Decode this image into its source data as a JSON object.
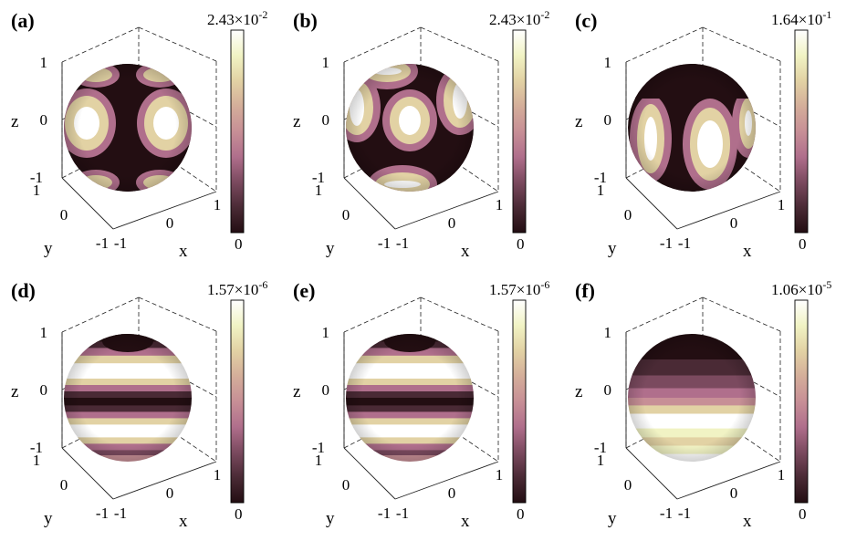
{
  "colormap": [
    "#230e12",
    "#4a2a35",
    "#7b4a5f",
    "#b06f8c",
    "#c78f96",
    "#d4ae9a",
    "#e2d2a4",
    "#f1f3c4",
    "#ffffff"
  ],
  "panels": [
    {
      "label": "(a)",
      "pattern": "a",
      "cbar": {
        "mantissa": "2.43×10",
        "exponent": "-2",
        "min": "0"
      },
      "ticks": {
        "z": [
          "1",
          "0",
          "-1"
        ],
        "y": [
          "1",
          "0",
          "-1"
        ],
        "x": [
          "-1",
          "0",
          "1"
        ]
      },
      "axes": {
        "x": "x",
        "y": "y",
        "z": "z"
      }
    },
    {
      "label": "(b)",
      "pattern": "b",
      "cbar": {
        "mantissa": "2.43×10",
        "exponent": "-2",
        "min": "0"
      },
      "ticks": {
        "z": [
          "1",
          "0",
          "-1"
        ],
        "y": [
          "1",
          "0",
          "-1"
        ],
        "x": [
          "-1",
          "0",
          "1"
        ]
      },
      "axes": {
        "x": "x",
        "y": "y",
        "z": "z"
      }
    },
    {
      "label": "(c)",
      "pattern": "c",
      "cbar": {
        "mantissa": "1.64×10",
        "exponent": "-1",
        "min": "0"
      },
      "ticks": {
        "z": [
          "1",
          "0",
          "-1"
        ],
        "y": [
          "1",
          "0",
          "-1"
        ],
        "x": [
          "-1",
          "0",
          "1"
        ]
      },
      "axes": {
        "x": "x",
        "y": "y",
        "z": "z"
      }
    },
    {
      "label": "(d)",
      "pattern": "d",
      "cbar": {
        "mantissa": "1.57×10",
        "exponent": "-6",
        "min": "0"
      },
      "ticks": {
        "z": [
          "1",
          "0",
          "-1"
        ],
        "y": [
          "1",
          "0",
          "-1"
        ],
        "x": [
          "-1",
          "0",
          "1"
        ]
      },
      "axes": {
        "x": "x",
        "y": "y",
        "z": "z"
      }
    },
    {
      "label": "(e)",
      "pattern": "d",
      "cbar": {
        "mantissa": "1.57×10",
        "exponent": "-6",
        "min": "0"
      },
      "ticks": {
        "z": [
          "1",
          "0",
          "-1"
        ],
        "y": [
          "1",
          "0",
          "-1"
        ],
        "x": [
          "-1",
          "0",
          "1"
        ]
      },
      "axes": {
        "x": "x",
        "y": "y",
        "z": "z"
      }
    },
    {
      "label": "(f)",
      "pattern": "f",
      "cbar": {
        "mantissa": "1.06×10",
        "exponent": "-5",
        "min": "0"
      },
      "ticks": {
        "z": [
          "1",
          "0",
          "-1"
        ],
        "y": [
          "1",
          "0",
          "-1"
        ],
        "x": [
          "-1",
          "0",
          "1"
        ]
      },
      "axes": {
        "x": "x",
        "y": "y",
        "z": "z"
      }
    }
  ]
}
